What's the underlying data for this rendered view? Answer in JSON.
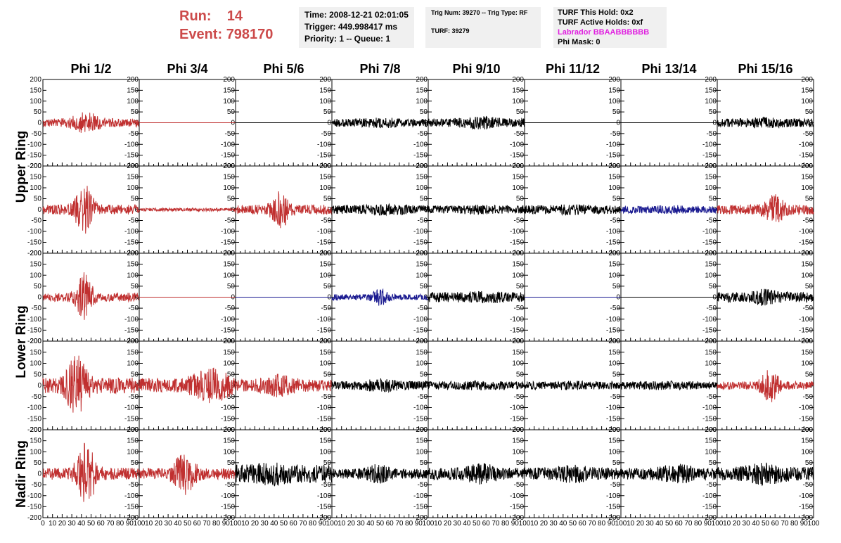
{
  "run": {
    "run_label": "Run:",
    "run_value": "14",
    "event_label": "Event:",
    "event_value": "798170"
  },
  "header_time": {
    "time": "Time: 2008-12-21 02:01:05",
    "trigger": "Trigger: 449.998417 ms",
    "priority": "Priority: 1 -- Queue: 1"
  },
  "header_trig": {
    "trig": "Trig Num: 39270 -- Trig Type: RF",
    "turf": "TURF: 39279"
  },
  "header_turf": {
    "hold": "TURF This Hold: 0x2",
    "active": "TURF Active Holds: 0xf",
    "labrador": "Labrador BBAABBBBBB",
    "phimask": "Phi Mask: 0"
  },
  "colors": {
    "red": "#c03030",
    "black": "#000000",
    "blue": "#1a1a90",
    "labrador": "#e020e0",
    "run": "#cc4a4a"
  },
  "chart_data": {
    "type": "line",
    "columns": [
      "Phi 1/2",
      "Phi 3/4",
      "Phi 5/6",
      "Phi 7/8",
      "Phi 9/10",
      "Phi 11/12",
      "Phi 13/14",
      "Phi 15/16"
    ],
    "row_labels": [
      {
        "text": "Upper Ring",
        "rows": [
          0,
          1
        ]
      },
      {
        "text": "Lower Ring",
        "rows": [
          2,
          3
        ]
      },
      {
        "text": "Nadir Ring",
        "rows": [
          4,
          4
        ]
      }
    ],
    "xlim": [
      0,
      100
    ],
    "ylim": [
      -200,
      200
    ],
    "x_ticks": [
      "0",
      "10",
      "20",
      "30",
      "40",
      "50",
      "60",
      "70",
      "80",
      "90",
      "100"
    ],
    "y_ticks": [
      "-200",
      "-150",
      "-100",
      "-50",
      "0",
      "50",
      "100",
      "150",
      "200"
    ],
    "panels": [
      [
        {
          "color": "red",
          "amp": 22,
          "burst": 35,
          "center": 45,
          "width": 14
        },
        {
          "color": "red",
          "amp": 0,
          "burst": 0,
          "center": 50,
          "width": 10
        },
        {
          "color": "black",
          "amp": 0,
          "burst": 0,
          "center": 50,
          "width": 10
        },
        {
          "color": "black",
          "amp": 20,
          "burst": 8,
          "center": 50,
          "width": 20
        },
        {
          "color": "black",
          "amp": 22,
          "burst": 14,
          "center": 55,
          "width": 18
        },
        {
          "color": "black",
          "amp": 0,
          "burst": 0,
          "center": 50,
          "width": 10
        },
        {
          "color": "black",
          "amp": 0,
          "burst": 0,
          "center": 50,
          "width": 10
        },
        {
          "color": "black",
          "amp": 22,
          "burst": 8,
          "center": 50,
          "width": 20
        }
      ],
      [
        {
          "color": "red",
          "amp": 25,
          "burst": 110,
          "center": 43,
          "width": 9
        },
        {
          "color": "red",
          "amp": 8,
          "burst": 0,
          "center": 50,
          "width": 10
        },
        {
          "color": "red",
          "amp": 25,
          "burst": 75,
          "center": 47,
          "width": 9
        },
        {
          "color": "black",
          "amp": 22,
          "burst": 8,
          "center": 55,
          "width": 20
        },
        {
          "color": "black",
          "amp": 20,
          "burst": 6,
          "center": 50,
          "width": 20
        },
        {
          "color": "black",
          "amp": 22,
          "burst": 6,
          "center": 50,
          "width": 20
        },
        {
          "color": "blue",
          "amp": 18,
          "burst": 6,
          "center": 50,
          "width": 20
        },
        {
          "color": "red",
          "amp": 25,
          "burst": 55,
          "center": 60,
          "width": 10
        }
      ],
      [
        {
          "color": "red",
          "amp": 22,
          "burst": 110,
          "center": 43,
          "width": 8
        },
        {
          "color": "red",
          "amp": 0,
          "burst": 0,
          "center": 50,
          "width": 10
        },
        {
          "color": "blue",
          "amp": 0,
          "burst": 0,
          "center": 50,
          "width": 10
        },
        {
          "color": "blue",
          "amp": 15,
          "burst": 30,
          "center": 50,
          "width": 8
        },
        {
          "color": "black",
          "amp": 25,
          "burst": 8,
          "center": 60,
          "width": 20
        },
        {
          "color": "blue",
          "amp": 0,
          "burst": 0,
          "center": 50,
          "width": 10
        },
        {
          "color": "black",
          "amp": 0,
          "burst": 0,
          "center": 50,
          "width": 10
        },
        {
          "color": "black",
          "amp": 25,
          "burst": 20,
          "center": 50,
          "width": 14
        }
      ],
      [
        {
          "color": "red",
          "amp": 40,
          "burst": 130,
          "center": 35,
          "width": 10
        },
        {
          "color": "red",
          "amp": 35,
          "burst": 55,
          "center": 75,
          "width": 20
        },
        {
          "color": "red",
          "amp": 30,
          "burst": 30,
          "center": 45,
          "width": 16
        },
        {
          "color": "black",
          "amp": 22,
          "burst": 14,
          "center": 50,
          "width": 16
        },
        {
          "color": "black",
          "amp": 20,
          "burst": 4,
          "center": 50,
          "width": 20
        },
        {
          "color": "black",
          "amp": 20,
          "burst": 4,
          "center": 50,
          "width": 20
        },
        {
          "color": "black",
          "amp": 20,
          "burst": 4,
          "center": 50,
          "width": 20
        },
        {
          "color": "red",
          "amp": 20,
          "burst": 70,
          "center": 55,
          "width": 9
        }
      ],
      [
        {
          "color": "red",
          "amp": 30,
          "burst": 140,
          "center": 45,
          "width": 10
        },
        {
          "color": "red",
          "amp": 28,
          "burst": 85,
          "center": 47,
          "width": 11
        },
        {
          "color": "black",
          "amp": 45,
          "burst": 18,
          "center": 40,
          "width": 18
        },
        {
          "color": "black",
          "amp": 25,
          "burst": 25,
          "center": 48,
          "width": 12
        },
        {
          "color": "black",
          "amp": 30,
          "burst": 25,
          "center": 55,
          "width": 16
        },
        {
          "color": "black",
          "amp": 30,
          "burst": 20,
          "center": 50,
          "width": 16
        },
        {
          "color": "black",
          "amp": 30,
          "burst": 20,
          "center": 60,
          "width": 18
        },
        {
          "color": "black",
          "amp": 35,
          "burst": 25,
          "center": 50,
          "width": 18
        }
      ]
    ]
  }
}
